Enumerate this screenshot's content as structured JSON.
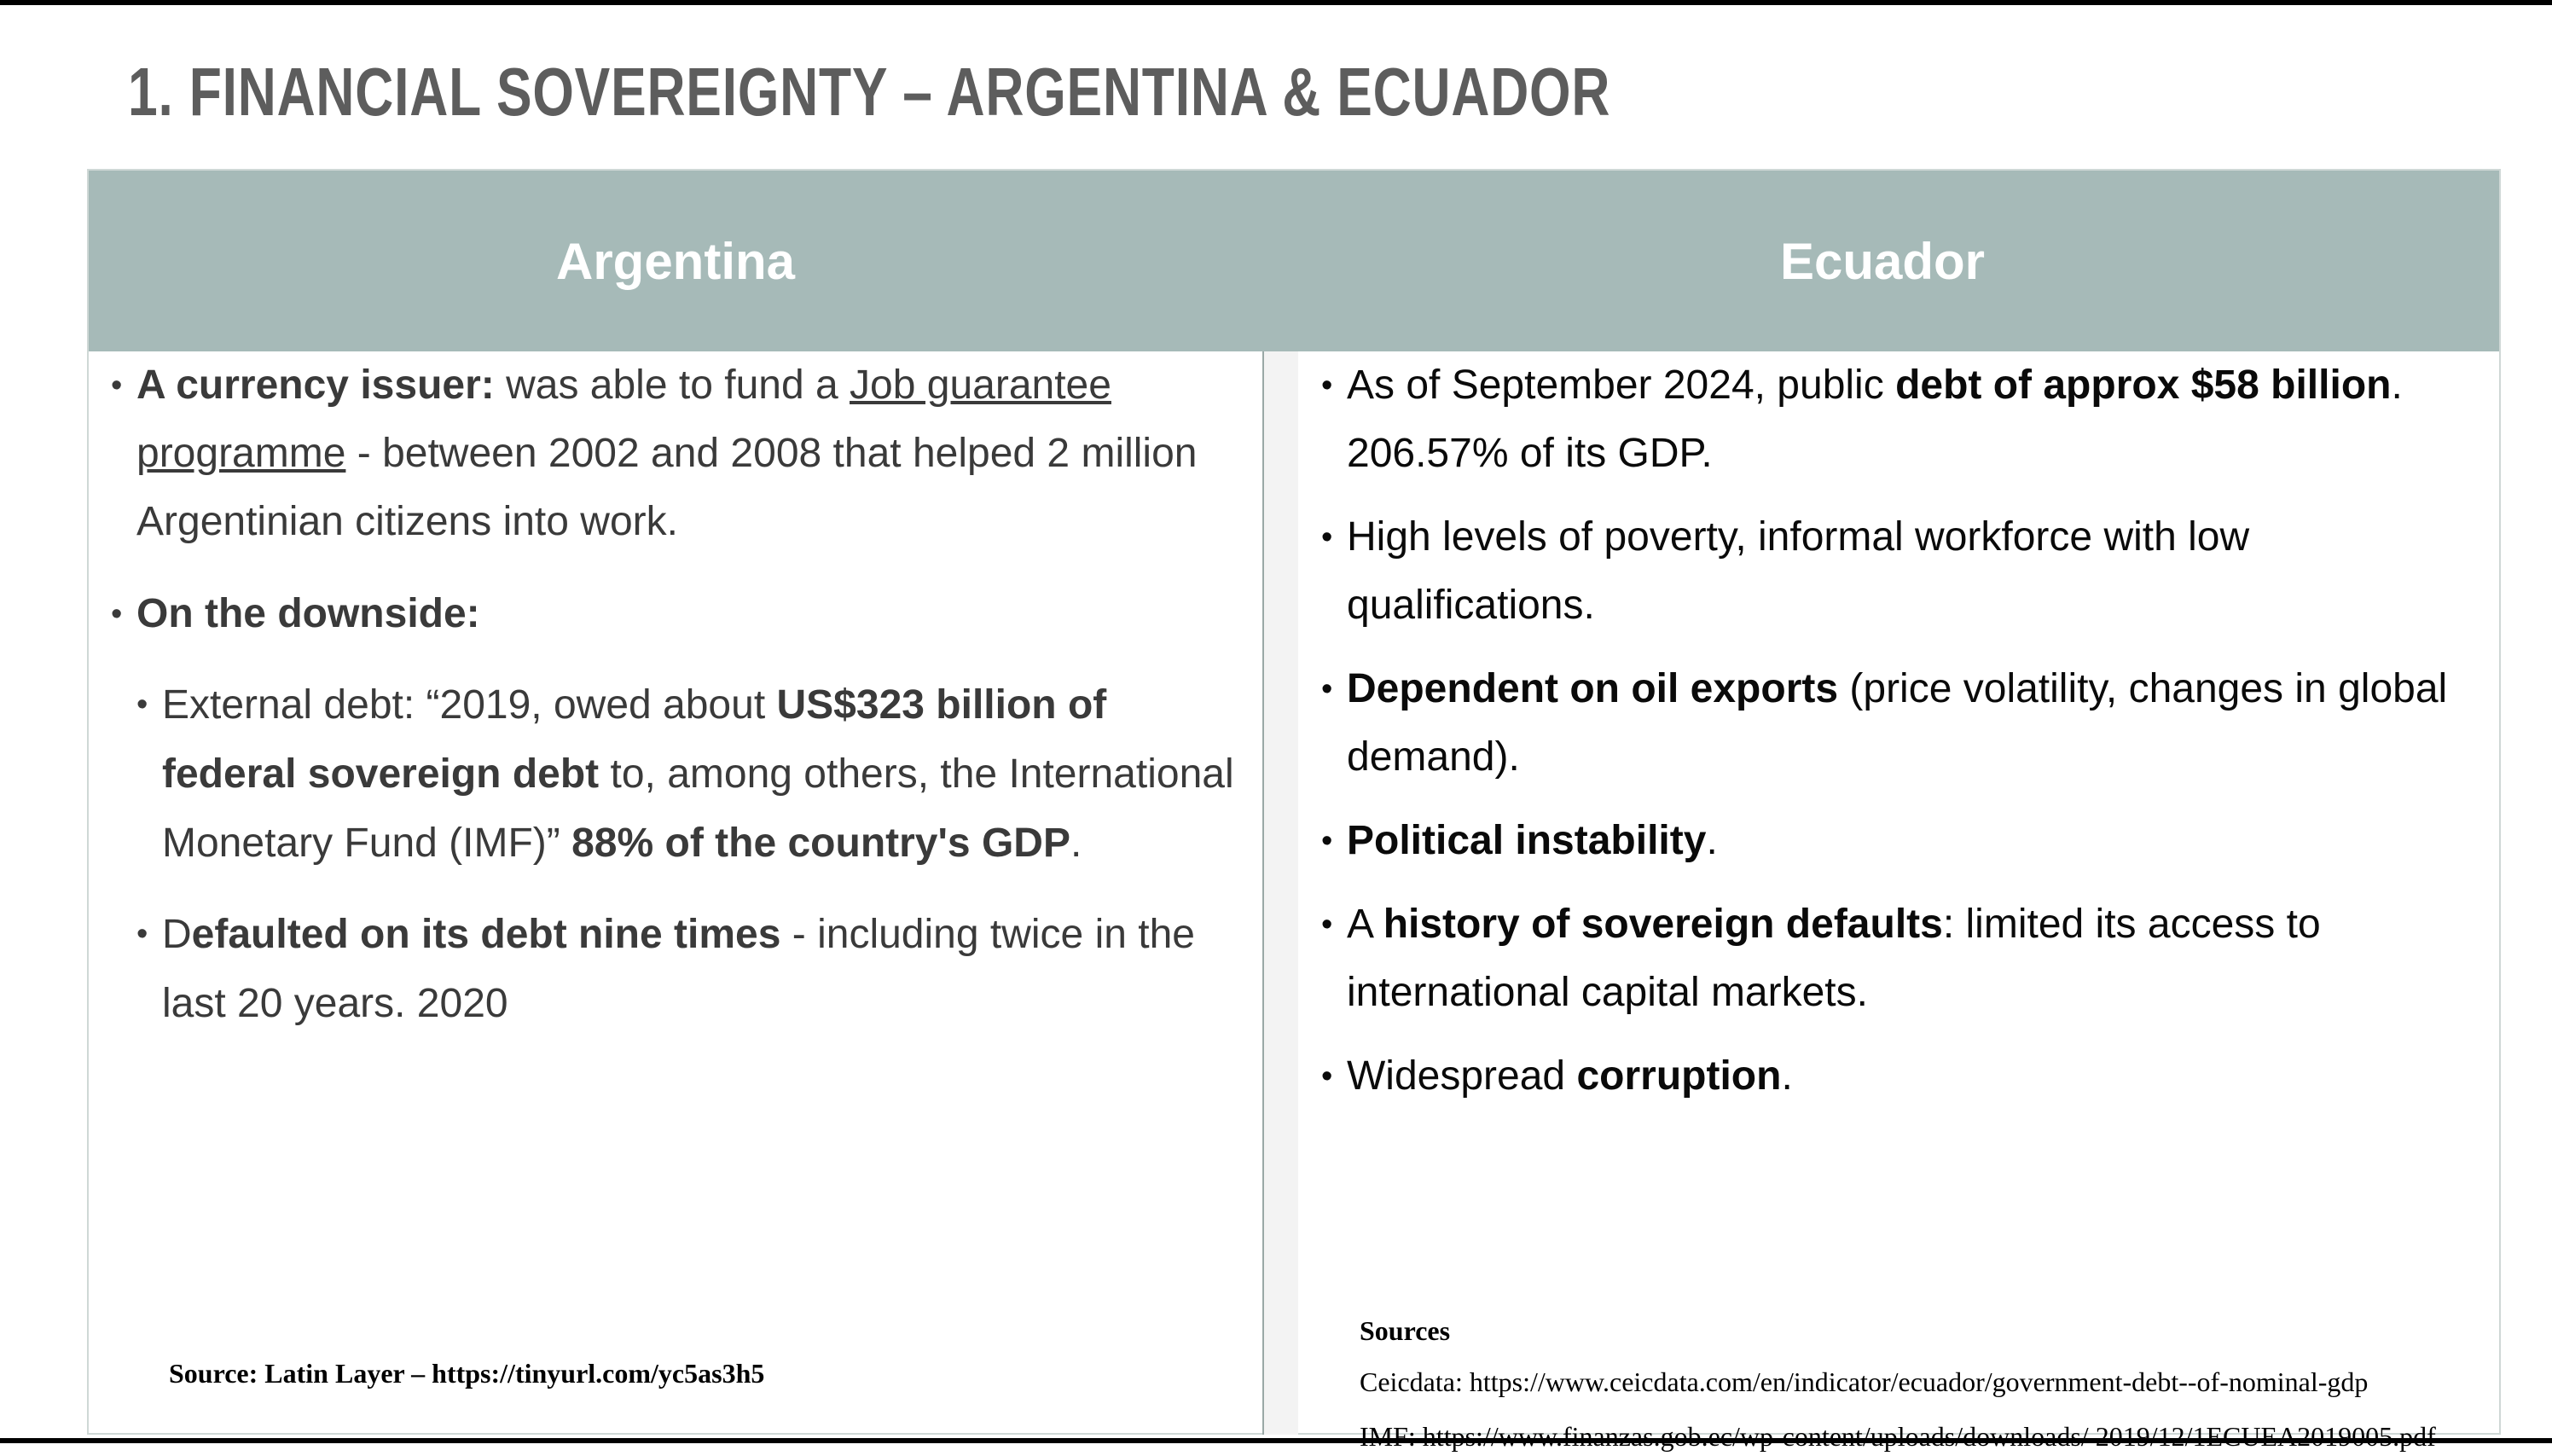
{
  "title": "1. FINANCIAL SOVEREIGNTY – ARGENTINA & ECUADOR",
  "table": {
    "headers": [
      "Argentina",
      "Ecuador"
    ]
  },
  "argentina": {
    "item1": {
      "bold": "A currency issuer:",
      "text1": " was able to fund a ",
      "link": "Job guarantee programme",
      "text2": " - between 2002 and 2008 that helped 2 million Argentinian citizens into work."
    },
    "item2": {
      "bold": "On the downside:"
    },
    "sub1": {
      "text1": "External debt: “2019, owed about ",
      "bold1": "US$323 billion of federal sovereign debt",
      "text2": " to, among others, the International Monetary Fund (IMF)”  ",
      "bold2": "88% of the country's GDP",
      "text3": "."
    },
    "sub2": {
      "text1": "D",
      "bold": "efaulted on its debt nine times",
      "text2": " - including twice in the last 20 years. 2020"
    },
    "source": "Source: Latin Layer – https://tinyurl.com/yc5as3h5"
  },
  "ecuador": {
    "item1": {
      "text1": "As of September 2024, public ",
      "bold": "debt of approx $58 billion",
      "text2": ". 206.57% of its GDP."
    },
    "item2": {
      "text": "High levels of poverty, informal workforce with low qualifications."
    },
    "item3": {
      "bold": "Dependent on oil exports",
      "text": " (price volatility, changes in global demand)."
    },
    "item4": {
      "bold": "Political instability",
      "text": "."
    },
    "item5": {
      "text1": "A ",
      "bold": "history of sovereign defaults",
      "text2": ": limited its access to international capital markets."
    },
    "item6": {
      "text1": "Widespread ",
      "bold": "corruption",
      "text2": "."
    },
    "sources": {
      "title": "Sources",
      "line1": "Ceicdata: https://www.ceicdata.com/en/indicator/ecuador/government-debt--of-nominal-gdp",
      "line2": "IMF: https://www.finanzas.gob.ec/wp-content/uploads/downloads/ 2019/12/1ECUEA2019005.pdf"
    }
  }
}
